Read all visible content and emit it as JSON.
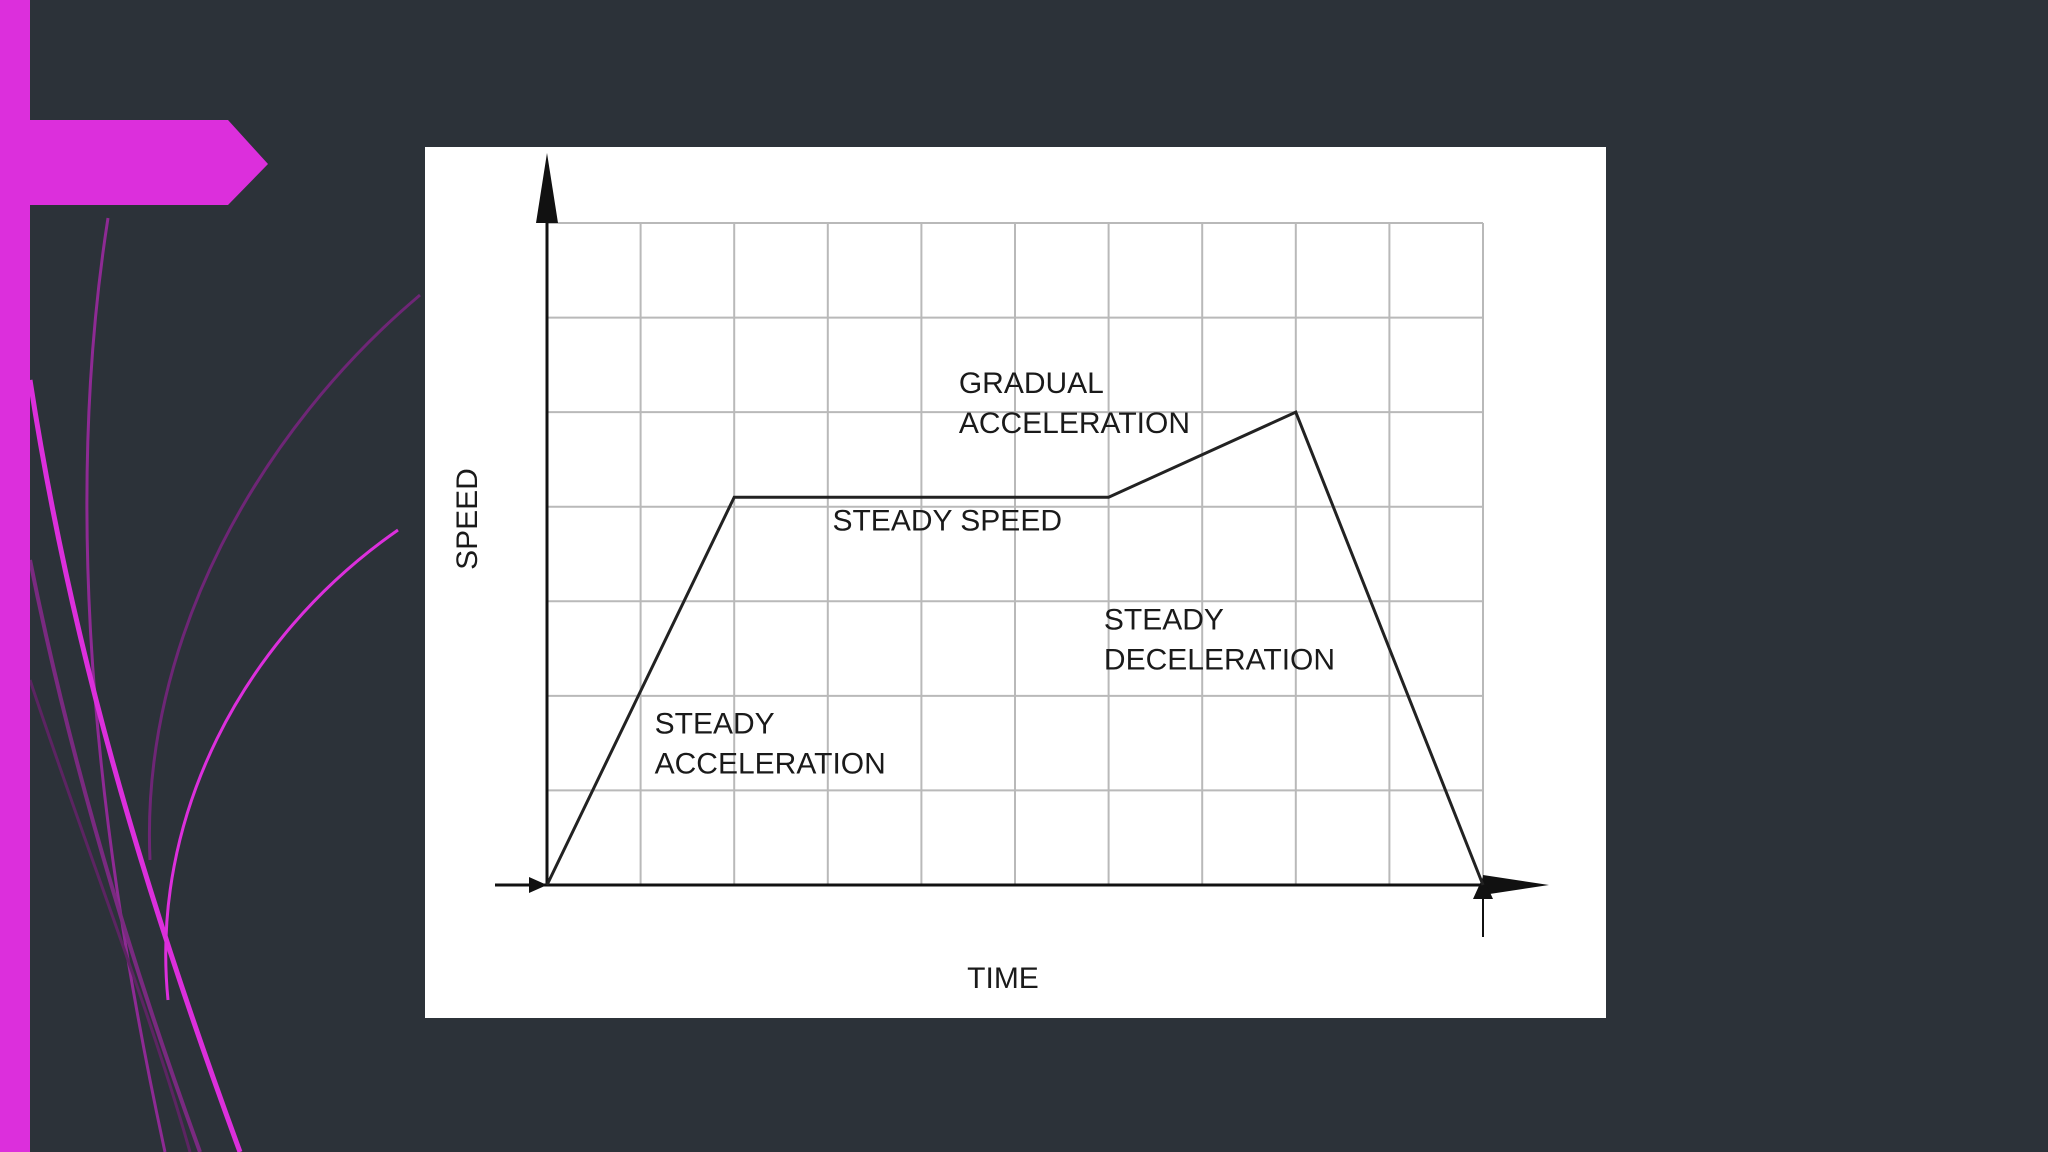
{
  "theme": {
    "background": "#2c3239",
    "accent": "#dc2fdc",
    "panel": "#ffffff"
  },
  "chart_data": {
    "type": "line",
    "xlabel": "TIME",
    "ylabel": "SPEED",
    "x_range": [
      0,
      10
    ],
    "y_range": [
      0,
      7
    ],
    "grid": true,
    "series": [
      {
        "x": [
          0,
          2,
          6,
          8,
          10
        ],
        "y": [
          0,
          4.1,
          4.1,
          5,
          0
        ]
      }
    ],
    "annotations": [
      {
        "text": [
          "STEADY",
          "ACCELERATION"
        ],
        "x": 1.15,
        "y": 1.6
      },
      {
        "text": [
          "STEADY SPEED"
        ],
        "x": 3.05,
        "y": 3.75
      },
      {
        "text": [
          "GRADUAL",
          "ACCELERATION"
        ],
        "x": 4.4,
        "y": 5.2
      },
      {
        "text": [
          "STEADY",
          "DECELERATION"
        ],
        "x": 5.95,
        "y": 2.7
      }
    ]
  }
}
